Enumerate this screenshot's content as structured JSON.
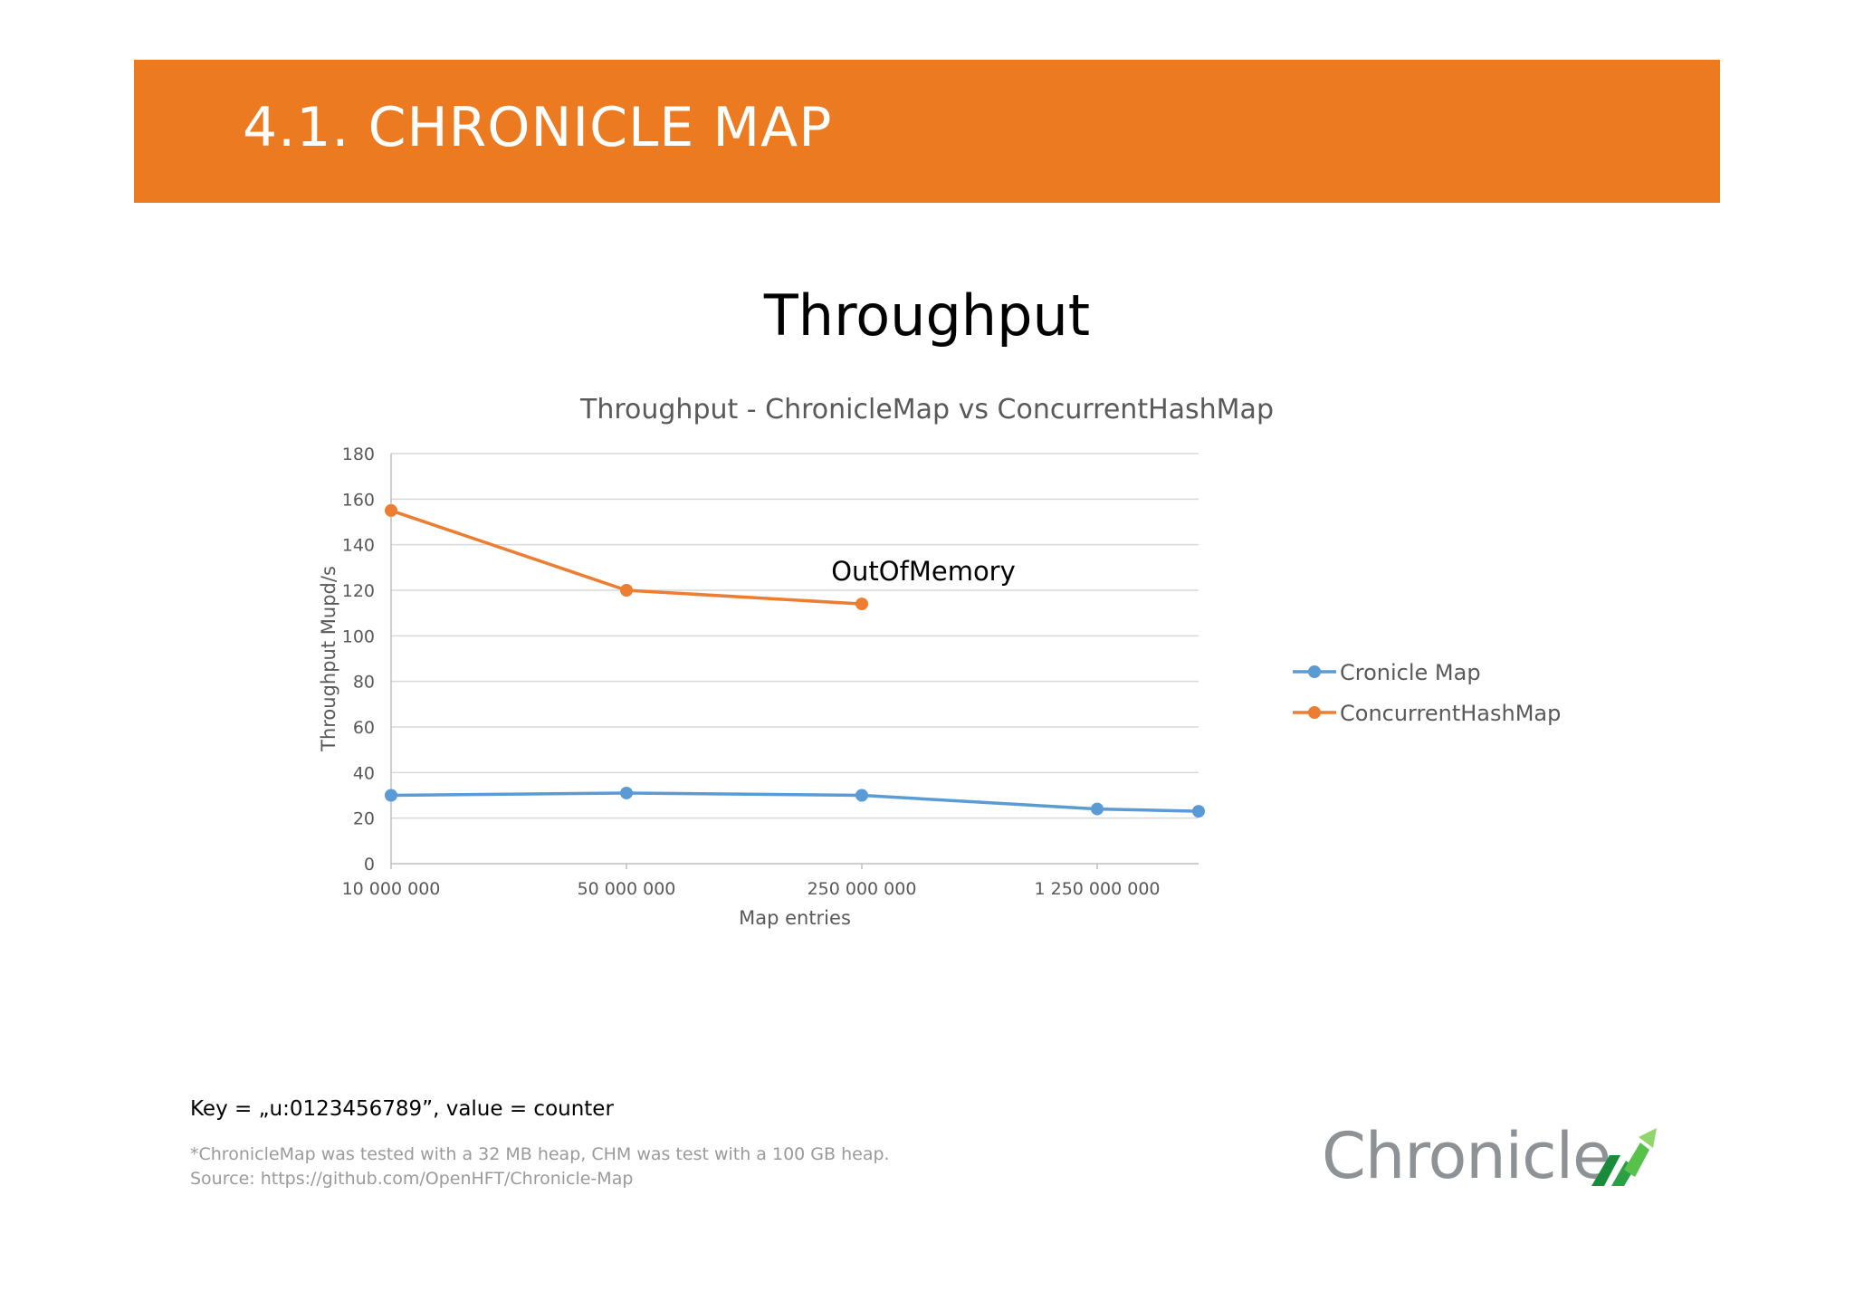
{
  "header": {
    "title": "4.1. CHRONICLE MAP"
  },
  "slide": {
    "heading": "Throughput",
    "key_line": "Key = „u:0123456789”, value = counter",
    "footnote_1": "*ChronicleMap was tested with a 32 MB heap, CHM was test with a 100 GB heap.",
    "footnote_2": "Source: https://github.com/OpenHFT/Chronicle-Map"
  },
  "logo": {
    "text": "Chronicle",
    "mark_colors": [
      "#1a8a3c",
      "#56c24a",
      "#8fd66b"
    ]
  },
  "colors": {
    "banner": "#ec7a20",
    "series_blue": "#5b9bd5",
    "series_orange": "#ed7d31"
  },
  "chart_data": {
    "type": "line",
    "title": "Throughput - ChronicleMap vs ConcurrentHashMap",
    "xlabel": "Map entries",
    "ylabel": "Throughput Mupd/s",
    "ylim": [
      0,
      180
    ],
    "yticks": [
      "0",
      "20",
      "40",
      "60",
      "80",
      "100",
      "120",
      "140",
      "160",
      "180"
    ],
    "x_tick_labels": [
      "10 000 000",
      "50 000 000",
      "250 000 000",
      "1 250 000 000"
    ],
    "x_scale": "log",
    "grid": true,
    "legend_position": "right",
    "annotation": "OutOfMemory",
    "series": [
      {
        "name": "Cronicle Map",
        "color": "#5b9bd5",
        "points": [
          {
            "x": 10000000,
            "y": 30
          },
          {
            "x": 50000000,
            "y": 31
          },
          {
            "x": 250000000,
            "y": 30
          },
          {
            "x": 1250000000,
            "y": 24
          },
          {
            "x": 2500000000,
            "y": 23
          }
        ]
      },
      {
        "name": "ConcurrentHashMap",
        "color": "#ed7d31",
        "points": [
          {
            "x": 10000000,
            "y": 155
          },
          {
            "x": 50000000,
            "y": 120
          },
          {
            "x": 250000000,
            "y": 114
          }
        ]
      }
    ]
  }
}
